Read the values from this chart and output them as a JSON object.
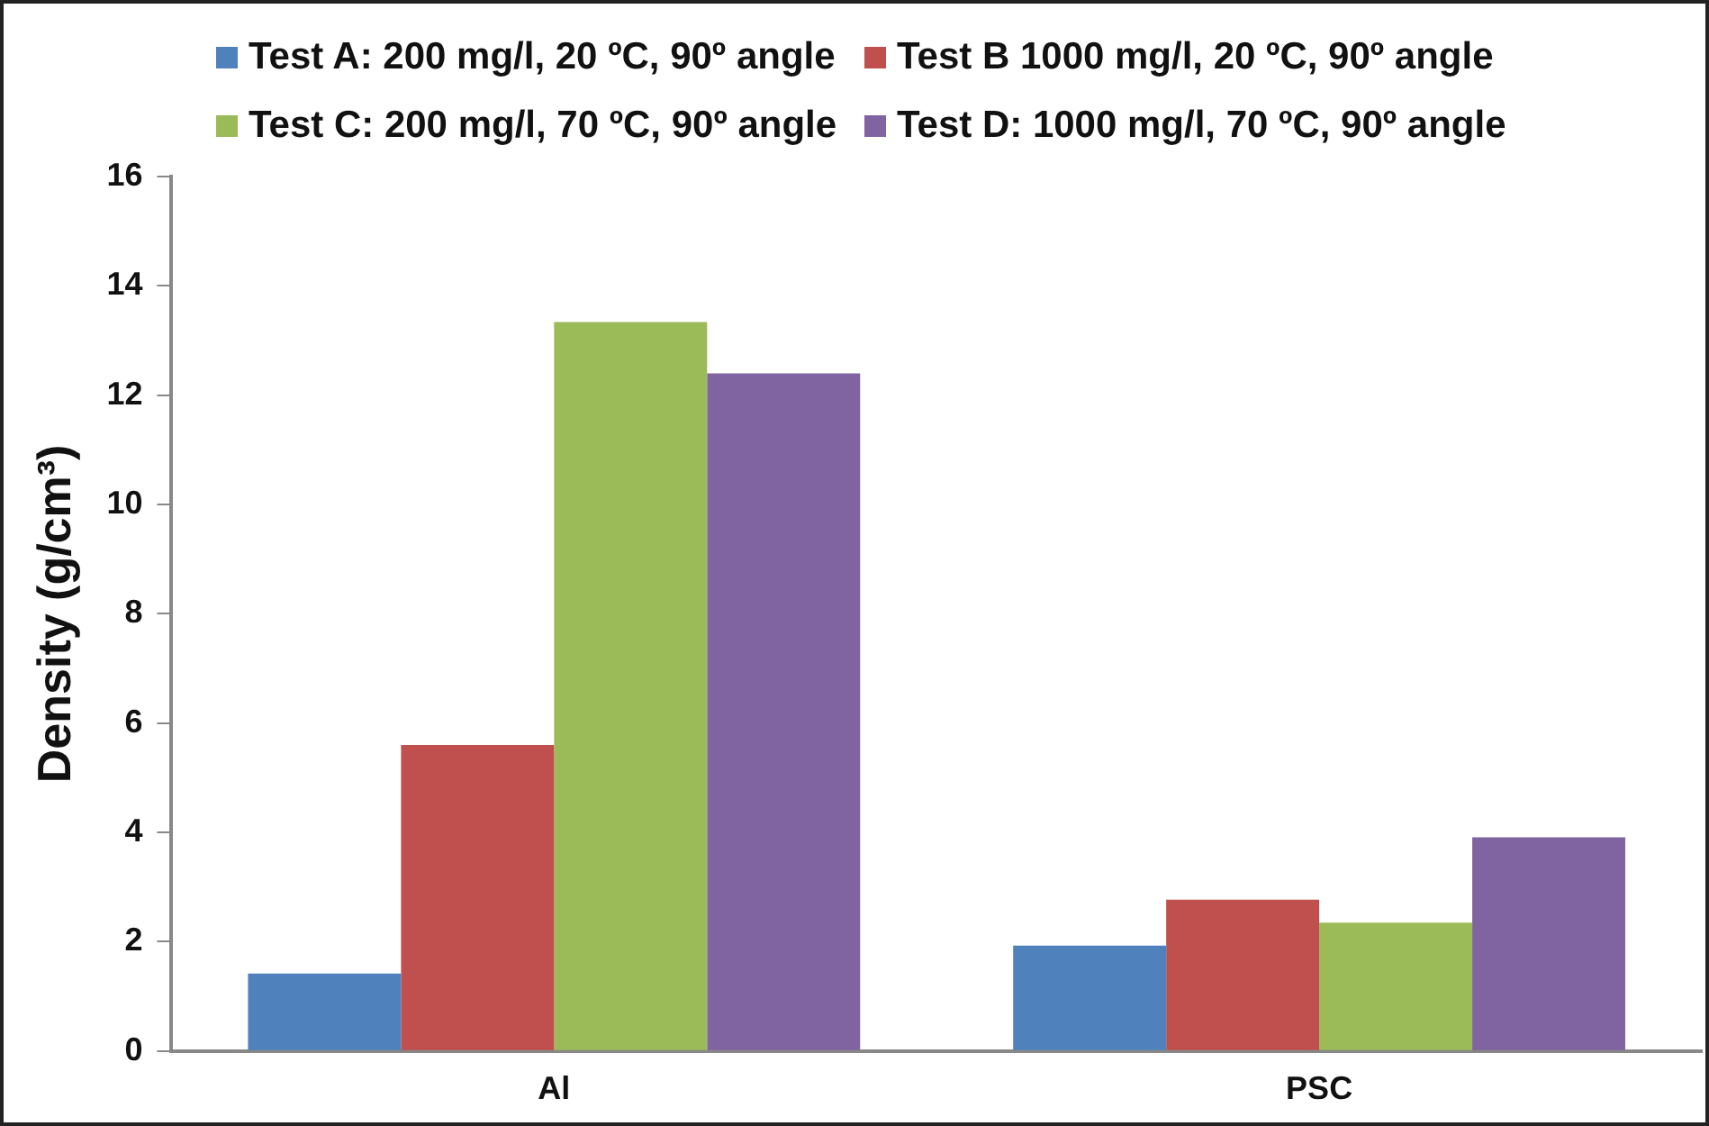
{
  "chart_data": {
    "type": "bar",
    "ylabel": "Density (g/cm³)",
    "categories": [
      "Al",
      "PSC"
    ],
    "series": [
      {
        "name": "Test A: 200 mg/l, 20 ºC, 90º angle",
        "color": "#4f81bd",
        "values": [
          1.42,
          1.93
        ]
      },
      {
        "name": "Test B 1000 mg/l, 20 ºC, 90º angle",
        "color": "#c0504d",
        "values": [
          5.6,
          2.77
        ]
      },
      {
        "name": "Test C: 200 mg/l, 70 ºC, 90º angle",
        "color": "#9bbb59",
        "values": [
          13.34,
          2.35
        ]
      },
      {
        "name": "Test D: 1000 mg/l, 70 ºC, 90º angle",
        "color": "#8064a2",
        "values": [
          12.4,
          3.91
        ]
      }
    ],
    "ylim": [
      0,
      16
    ],
    "yticks": [
      0,
      2,
      4,
      6,
      8,
      10,
      12,
      14,
      16
    ],
    "grid": false,
    "legend": "top"
  }
}
